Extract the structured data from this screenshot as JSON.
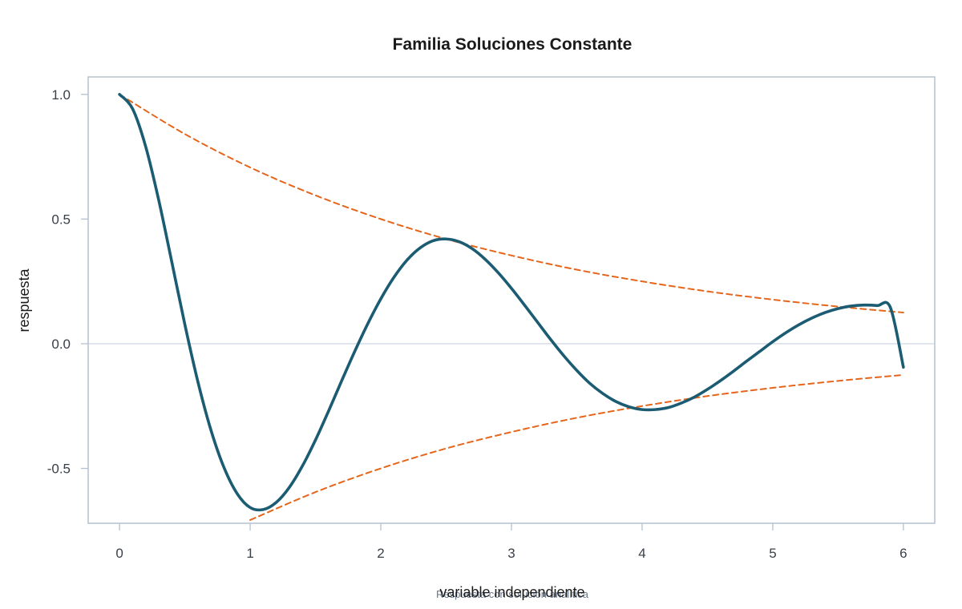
{
  "chart_data": {
    "type": "line",
    "title": "Familia Soluciones Constante",
    "xlabel": "variable independiente",
    "ylabel": "respuesta",
    "caption": "Respuesta con solución analítica",
    "xlim": [
      -0.24,
      6.24
    ],
    "ylim": [
      -0.72,
      1.07
    ],
    "xticks": [
      0,
      1,
      2,
      3,
      4,
      5,
      6
    ],
    "xtick_labels": [
      "0",
      "1",
      "2",
      "3",
      "4",
      "5",
      "6"
    ],
    "yticks": [
      1.0,
      0.5,
      0.0,
      -0.5
    ],
    "ytick_labels": [
      "1.0",
      "0.5",
      "0.0",
      "-0.5"
    ],
    "grid": false,
    "reference_line_y": 0,
    "colors": {
      "response": "#1b5c73",
      "envelope": "#e5651b",
      "frame": "#b5c0d0",
      "zero_line": "#c8d2de"
    },
    "series": [
      {
        "role": "response",
        "style": "solid",
        "x": [
          0,
          0.1,
          0.2,
          0.3,
          0.4,
          0.5,
          0.6,
          0.7,
          0.8,
          0.9,
          1.0,
          1.1,
          1.2,
          1.3,
          1.4,
          1.5,
          1.6,
          1.7,
          1.8,
          1.9,
          2.0,
          2.1,
          2.2,
          2.3,
          2.4,
          2.5,
          2.6,
          2.7,
          2.8,
          2.9,
          3.0,
          3.1,
          3.2,
          3.3,
          3.4,
          3.5,
          3.6,
          3.7,
          3.8,
          3.9,
          4.0,
          4.1,
          4.2,
          4.3,
          4.4,
          4.5,
          4.6,
          4.7,
          4.8,
          4.9,
          5.0,
          5.1,
          5.2,
          5.3,
          5.4,
          5.5,
          5.6,
          5.7,
          5.8,
          5.9,
          6.0
        ],
        "y": [
          1.0,
          0.942,
          0.791,
          0.576,
          0.328,
          0.077,
          -0.153,
          -0.347,
          -0.497,
          -0.601,
          -0.657,
          -0.665,
          -0.636,
          -0.576,
          -0.49,
          -0.386,
          -0.27,
          -0.149,
          -0.031,
          0.08,
          0.18,
          0.266,
          0.335,
          0.384,
          0.413,
          0.42,
          0.409,
          0.381,
          0.338,
          0.284,
          0.222,
          0.155,
          0.086,
          0.017,
          -0.048,
          -0.107,
          -0.159,
          -0.2,
          -0.232,
          -0.253,
          -0.264,
          -0.264,
          -0.256,
          -0.238,
          -0.214,
          -0.183,
          -0.148,
          -0.11,
          -0.07,
          -0.031,
          0.008,
          0.044,
          0.076,
          0.103,
          0.125,
          0.141,
          0.151,
          0.155,
          0.153,
          0.146,
          -0.094
        ]
      },
      {
        "role": "upper-envelope",
        "style": "dashed",
        "x": [
          0,
          0.5,
          1,
          1.5,
          2,
          2.5,
          3,
          3.5,
          4,
          4.5,
          5,
          5.5,
          6
        ],
        "y": [
          1.0,
          0.841,
          0.707,
          0.595,
          0.5,
          0.42,
          0.354,
          0.297,
          0.25,
          0.21,
          0.177,
          0.149,
          0.125
        ]
      },
      {
        "role": "lower-envelope",
        "style": "dashed",
        "x": [
          1,
          1.5,
          2,
          2.5,
          3,
          3.5,
          4,
          4.5,
          5,
          5.5,
          6
        ],
        "y": [
          -0.707,
          -0.595,
          -0.5,
          -0.42,
          -0.354,
          -0.297,
          -0.25,
          -0.21,
          -0.177,
          -0.149,
          -0.125
        ]
      }
    ]
  }
}
